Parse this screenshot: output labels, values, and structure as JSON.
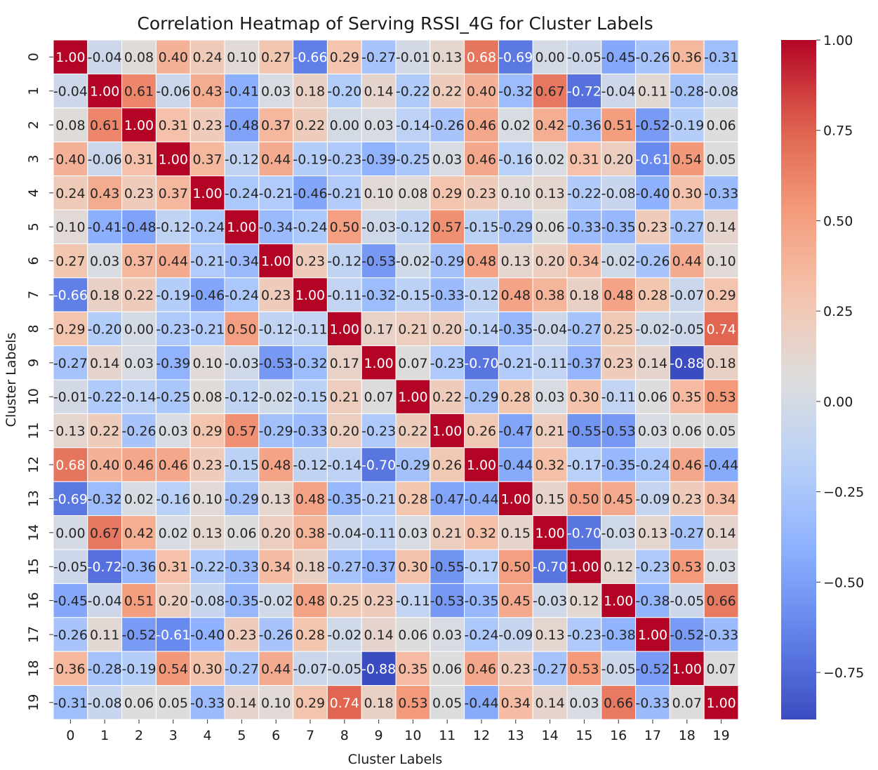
{
  "chart_data": {
    "type": "heatmap",
    "title": "Correlation Heatmap of Serving RSSI_4G for Cluster Labels",
    "xlabel": "Cluster Labels",
    "ylabel": "Cluster Labels",
    "x_categories": [
      "0",
      "1",
      "2",
      "3",
      "4",
      "5",
      "6",
      "7",
      "8",
      "9",
      "10",
      "11",
      "12",
      "13",
      "14",
      "15",
      "16",
      "17",
      "18",
      "19"
    ],
    "y_categories": [
      "0",
      "1",
      "2",
      "3",
      "4",
      "5",
      "6",
      "7",
      "8",
      "9",
      "10",
      "11",
      "12",
      "13",
      "14",
      "15",
      "16",
      "17",
      "18",
      "19"
    ],
    "values": [
      [
        1.0,
        -0.04,
        0.08,
        0.4,
        0.24,
        0.1,
        0.27,
        -0.66,
        0.29,
        -0.27,
        -0.01,
        0.13,
        0.68,
        -0.69,
        0.0,
        -0.05,
        -0.45,
        -0.26,
        0.36,
        -0.31
      ],
      [
        -0.04,
        1.0,
        0.61,
        -0.06,
        0.43,
        -0.41,
        0.03,
        0.18,
        -0.2,
        0.14,
        -0.22,
        0.22,
        0.4,
        -0.32,
        0.67,
        -0.72,
        -0.04,
        0.11,
        -0.28,
        -0.08
      ],
      [
        0.08,
        0.61,
        1.0,
        0.31,
        0.23,
        -0.48,
        0.37,
        0.22,
        0.0,
        0.03,
        -0.14,
        -0.26,
        0.46,
        0.02,
        0.42,
        -0.36,
        0.51,
        -0.52,
        -0.19,
        0.06
      ],
      [
        0.4,
        -0.06,
        0.31,
        1.0,
        0.37,
        -0.12,
        0.44,
        -0.19,
        -0.23,
        -0.39,
        -0.25,
        0.03,
        0.46,
        -0.16,
        0.02,
        0.31,
        0.2,
        -0.61,
        0.54,
        0.05
      ],
      [
        0.24,
        0.43,
        0.23,
        0.37,
        1.0,
        -0.24,
        -0.21,
        -0.46,
        -0.21,
        0.1,
        0.08,
        0.29,
        0.23,
        0.1,
        0.13,
        -0.22,
        -0.08,
        -0.4,
        0.3,
        -0.33
      ],
      [
        0.1,
        -0.41,
        -0.48,
        -0.12,
        -0.24,
        1.0,
        -0.34,
        -0.24,
        0.5,
        -0.03,
        -0.12,
        0.57,
        -0.15,
        -0.29,
        0.06,
        -0.33,
        -0.35,
        0.23,
        -0.27,
        0.14
      ],
      [
        0.27,
        0.03,
        0.37,
        0.44,
        -0.21,
        -0.34,
        1.0,
        0.23,
        -0.12,
        -0.53,
        -0.02,
        -0.29,
        0.48,
        0.13,
        0.2,
        0.34,
        -0.02,
        -0.26,
        0.44,
        0.1
      ],
      [
        -0.66,
        0.18,
        0.22,
        -0.19,
        -0.46,
        -0.24,
        0.23,
        1.0,
        -0.11,
        -0.32,
        -0.15,
        -0.33,
        -0.12,
        0.48,
        0.38,
        0.18,
        0.48,
        0.28,
        -0.07,
        0.29
      ],
      [
        0.29,
        -0.2,
        0.0,
        -0.23,
        -0.21,
        0.5,
        -0.12,
        -0.11,
        1.0,
        0.17,
        0.21,
        0.2,
        -0.14,
        -0.35,
        -0.04,
        -0.27,
        0.25,
        -0.02,
        -0.05,
        0.74
      ],
      [
        -0.27,
        0.14,
        0.03,
        -0.39,
        0.1,
        -0.03,
        -0.53,
        -0.32,
        0.17,
        1.0,
        0.07,
        -0.23,
        -0.7,
        -0.21,
        -0.11,
        -0.37,
        0.23,
        0.14,
        -0.88,
        0.18
      ],
      [
        -0.01,
        -0.22,
        -0.14,
        -0.25,
        0.08,
        -0.12,
        -0.02,
        -0.15,
        0.21,
        0.07,
        1.0,
        0.22,
        -0.29,
        0.28,
        0.03,
        0.3,
        -0.11,
        0.06,
        0.35,
        0.53
      ],
      [
        0.13,
        0.22,
        -0.26,
        0.03,
        0.29,
        0.57,
        -0.29,
        -0.33,
        0.2,
        -0.23,
        0.22,
        1.0,
        0.26,
        -0.47,
        0.21,
        -0.55,
        -0.53,
        0.03,
        0.06,
        0.05
      ],
      [
        0.68,
        0.4,
        0.46,
        0.46,
        0.23,
        -0.15,
        0.48,
        -0.12,
        -0.14,
        -0.7,
        -0.29,
        0.26,
        1.0,
        -0.44,
        0.32,
        -0.17,
        -0.35,
        -0.24,
        0.46,
        -0.44
      ],
      [
        -0.69,
        -0.32,
        0.02,
        -0.16,
        0.1,
        -0.29,
        0.13,
        0.48,
        -0.35,
        -0.21,
        0.28,
        -0.47,
        -0.44,
        1.0,
        0.15,
        0.5,
        0.45,
        -0.09,
        0.23,
        0.34
      ],
      [
        0.0,
        0.67,
        0.42,
        0.02,
        0.13,
        0.06,
        0.2,
        0.38,
        -0.04,
        -0.11,
        0.03,
        0.21,
        0.32,
        0.15,
        1.0,
        -0.7,
        -0.03,
        0.13,
        -0.27,
        0.14
      ],
      [
        -0.05,
        -0.72,
        -0.36,
        0.31,
        -0.22,
        -0.33,
        0.34,
        0.18,
        -0.27,
        -0.37,
        0.3,
        -0.55,
        -0.17,
        0.5,
        -0.7,
        1.0,
        0.12,
        -0.23,
        0.53,
        0.03
      ],
      [
        -0.45,
        -0.04,
        0.51,
        0.2,
        -0.08,
        -0.35,
        -0.02,
        0.48,
        0.25,
        0.23,
        -0.11,
        -0.53,
        -0.35,
        0.45,
        -0.03,
        0.12,
        1.0,
        -0.38,
        -0.05,
        0.66
      ],
      [
        -0.26,
        0.11,
        -0.52,
        -0.61,
        -0.4,
        0.23,
        -0.26,
        0.28,
        -0.02,
        0.14,
        0.06,
        0.03,
        -0.24,
        -0.09,
        0.13,
        -0.23,
        -0.38,
        1.0,
        -0.52,
        -0.33
      ],
      [
        0.36,
        -0.28,
        -0.19,
        0.54,
        0.3,
        -0.27,
        0.44,
        -0.07,
        -0.05,
        -0.88,
        0.35,
        0.06,
        0.46,
        0.23,
        -0.27,
        0.53,
        -0.05,
        -0.52,
        1.0,
        0.07
      ],
      [
        -0.31,
        -0.08,
        0.06,
        0.05,
        -0.33,
        0.14,
        0.1,
        0.29,
        0.74,
        0.18,
        0.53,
        0.05,
        -0.44,
        0.34,
        0.14,
        0.03,
        0.66,
        -0.33,
        0.07,
        1.0
      ]
    ],
    "value_format_decimals": 2,
    "colormap": "coolwarm",
    "colorbar": {
      "range": [
        -0.88,
        1.0
      ],
      "ticks": [
        -0.75,
        -0.5,
        -0.25,
        0.0,
        0.25,
        0.5,
        0.75,
        1.0
      ],
      "tick_labels": [
        "−0.75",
        "−0.50",
        "−0.25",
        "0.00",
        "0.25",
        "0.50",
        "0.75",
        "1.00"
      ]
    },
    "grid_lines_color": "#ffffff"
  }
}
